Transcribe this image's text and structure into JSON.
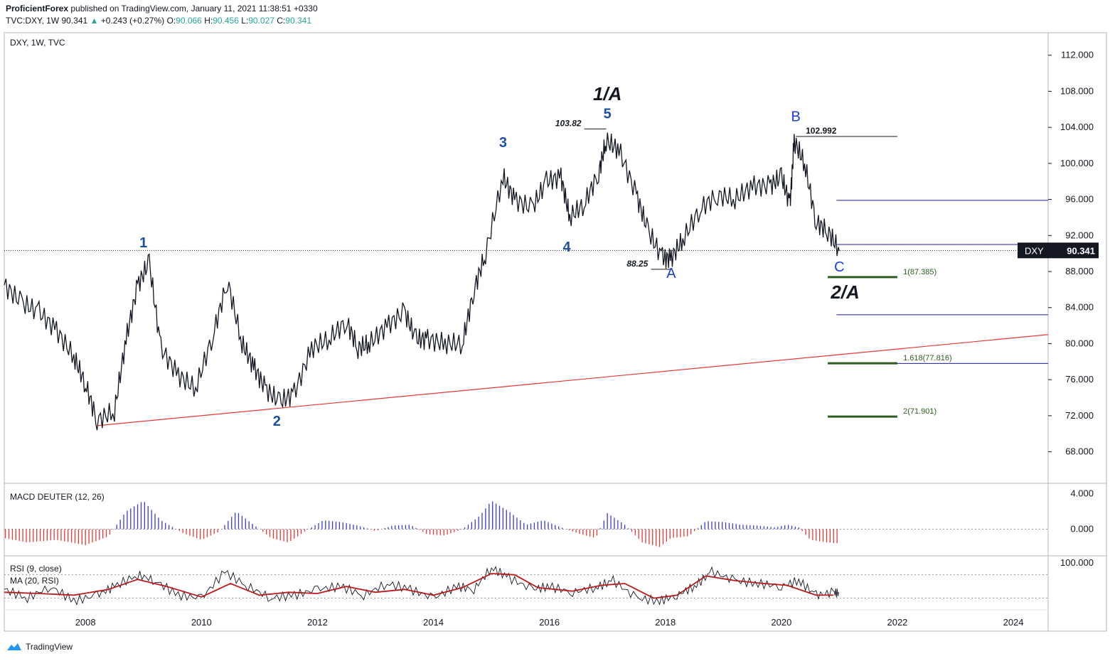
{
  "header": {
    "publisher": "ProficientForex",
    "published_text": " published on TradingView.com, January 11, 2021 11:38:51 +0330",
    "symbol_line_prefix": "TVC:DXY, 1W  90.341 ",
    "change_arrow": "▲",
    "change": "+0.243 (+0.27%)",
    "o_label": " O:",
    "o": "90.066",
    "h_label": " H:",
    "h": "90.456",
    "l_label": " L:",
    "l": "90.027",
    "c_label": " C:",
    "c": "90.341"
  },
  "footer": {
    "brand": "TradingView"
  },
  "colors": {
    "price_line": "#131722",
    "trendline": "#e53935",
    "wave_label": "#1e4fa3",
    "abc_label": "#1a3ce6",
    "fib_line": "#2e5b1e",
    "fib_text": "#2e5b1e",
    "hline": "#1a1a9e",
    "macd_pos": "#3b3bd4",
    "macd_neg": "#e53935",
    "rsi": "#131722",
    "rsi_ma": "#b71c1c"
  },
  "chart_data": [
    {
      "type": "line",
      "pane": "price",
      "title": "DXY, 1W, TVC",
      "ylim": [
        64.5,
        114.5
      ],
      "xlim": [
        2006.6,
        2024.6
      ],
      "y_ticks": [
        "112.000",
        "108.000",
        "104.000",
        "100.000",
        "96.000",
        "92.000",
        "88.000",
        "84.000",
        "80.000",
        "76.000",
        "72.000",
        "68.000"
      ],
      "x_ticks": [
        "2008",
        "2010",
        "2012",
        "2014",
        "2016",
        "2018",
        "2020",
        "2022",
        "2024"
      ],
      "last_price": 90.341,
      "last_price_label": "DXY",
      "last_price_text": "90.341",
      "series": [
        {
          "x": [
            2006.6,
            2006.9,
            2007.2,
            2007.5,
            2007.8,
            2008.0,
            2008.2,
            2008.5,
            2008.7,
            2008.9,
            2009.1,
            2009.3,
            2009.6,
            2009.9,
            2010.2,
            2010.45,
            2010.7,
            2010.9,
            2011.1,
            2011.35,
            2011.6,
            2011.9,
            2012.2,
            2012.5,
            2012.7,
            2012.9,
            2013.2,
            2013.5,
            2013.7,
            2013.9,
            2014.2,
            2014.5,
            2014.7,
            2014.9,
            2015.2,
            2015.4,
            2015.7,
            2015.95,
            2016.2,
            2016.35,
            2016.6,
            2016.85,
            2016.98,
            2017.2,
            2017.5,
            2017.7,
            2017.95,
            2018.1,
            2018.3,
            2018.6,
            2018.9,
            2019.2,
            2019.5,
            2019.8,
            2020.0,
            2020.15,
            2020.22,
            2020.4,
            2020.6,
            2020.8,
            2021.0
          ],
          "y": [
            86.5,
            84.5,
            83.5,
            81.5,
            78.5,
            75.5,
            71.5,
            72.5,
            80.5,
            86.5,
            89.0,
            79.5,
            76.5,
            75.0,
            81.0,
            87.0,
            80.0,
            77.5,
            75.0,
            73.5,
            74.5,
            79.5,
            80.5,
            82.5,
            79.5,
            80.0,
            82.0,
            83.5,
            80.5,
            80.5,
            80.0,
            80.0,
            86.0,
            90.0,
            98.5,
            96.0,
            95.0,
            98.0,
            98.5,
            94.0,
            95.5,
            99.0,
            102.5,
            101.5,
            96.5,
            92.5,
            89.5,
            89.5,
            91.5,
            95.0,
            96.5,
            96.0,
            97.5,
            97.5,
            98.5,
            95.5,
            102.5,
            100.0,
            93.5,
            92.5,
            90.3
          ]
        }
      ],
      "annotations": {
        "wave_labels": [
          {
            "text": "1",
            "x": 2009.0,
            "y": 90.7
          },
          {
            "text": "2",
            "x": 2011.3,
            "y": 70.9
          },
          {
            "text": "3",
            "x": 2015.2,
            "y": 101.8
          },
          {
            "text": "4",
            "x": 2016.3,
            "y": 90.2
          },
          {
            "text": "5",
            "x": 2017.0,
            "y": 105.0
          }
        ],
        "abc_labels": [
          {
            "text": "A",
            "x": 2018.1,
            "y": 87.3
          },
          {
            "text": "B",
            "x": 2020.25,
            "y": 104.7
          },
          {
            "text": "C",
            "x": 2021.0,
            "y": 88.0
          }
        ],
        "degree_labels": [
          {
            "text": "1/A",
            "x": 2017.0,
            "y": 107.0
          },
          {
            "text": "2/A",
            "x": 2021.1,
            "y": 85.0
          }
        ],
        "price_marks": [
          {
            "text": "103.82",
            "x1": 2016.6,
            "x2": 2016.98,
            "y": 103.82
          },
          {
            "text": "88.25",
            "x1": 2017.75,
            "x2": 2018.1,
            "y": 88.25
          },
          {
            "text": "102.992",
            "x1": 2020.25,
            "x2": 2022.0,
            "y": 102.99
          }
        ],
        "fib_levels": [
          {
            "text": "1(87.385)",
            "y": 87.385
          },
          {
            "text": "1.618(77.816)",
            "y": 77.816
          },
          {
            "text": "2(71.901)",
            "y": 71.901
          }
        ],
        "hlines": [
          95.9,
          91.0,
          83.2,
          77.8
        ],
        "trendline": {
          "x1": 2008.2,
          "y1": 70.9,
          "x2": 2024.6,
          "y2": 81.0
        }
      }
    },
    {
      "type": "bar",
      "pane": "macd",
      "title": "MACD DEUTER (12, 26)",
      "ylim": [
        -3.0,
        5.0
      ],
      "y_ticks": [
        "4.000",
        "0.000"
      ],
      "series": [
        {
          "x": [
            2006.6,
            2007.0,
            2007.5,
            2008.0,
            2008.4,
            2008.7,
            2009.0,
            2009.3,
            2009.7,
            2010.0,
            2010.3,
            2010.6,
            2010.9,
            2011.2,
            2011.5,
            2011.8,
            2012.1,
            2012.4,
            2012.7,
            2013.0,
            2013.3,
            2013.6,
            2013.9,
            2014.2,
            2014.5,
            2014.8,
            2015.0,
            2015.3,
            2015.6,
            2015.9,
            2016.2,
            2016.5,
            2016.8,
            2017.0,
            2017.3,
            2017.6,
            2017.9,
            2018.1,
            2018.4,
            2018.7,
            2019.0,
            2019.3,
            2019.6,
            2019.9,
            2020.1,
            2020.3,
            2020.5,
            2020.8,
            2021.0
          ],
          "y": [
            -1.0,
            -1.5,
            -1.2,
            -1.8,
            -0.8,
            2.0,
            3.2,
            1.0,
            -0.5,
            -1.2,
            -0.3,
            2.0,
            0.5,
            -1.0,
            -1.5,
            -0.2,
            1.0,
            0.8,
            0.4,
            -0.2,
            0.4,
            0.5,
            -0.6,
            -0.7,
            0.0,
            1.5,
            3.2,
            2.0,
            0.5,
            1.0,
            0.2,
            -0.5,
            -1.0,
            1.8,
            0.5,
            -1.5,
            -2.0,
            -1.0,
            -0.8,
            0.9,
            0.8,
            0.5,
            0.4,
            0.2,
            0.5,
            0.2,
            -1.2,
            -1.5,
            -1.6
          ]
        }
      ]
    },
    {
      "type": "line",
      "pane": "rsi",
      "title": "RSI (9, close)",
      "subtitle": "MA (20, RSI)",
      "ylim": [
        20,
        110
      ],
      "y_ticks": [
        "100.000"
      ],
      "series": [
        {
          "x": [
            2006.6,
            2007.0,
            2007.4,
            2007.8,
            2008.2,
            2008.5,
            2008.9,
            2009.2,
            2009.6,
            2010.0,
            2010.4,
            2010.8,
            2011.2,
            2011.6,
            2012.0,
            2012.4,
            2012.8,
            2013.2,
            2013.6,
            2014.0,
            2014.4,
            2014.7,
            2015.0,
            2015.3,
            2015.7,
            2016.0,
            2016.4,
            2016.8,
            2017.1,
            2017.5,
            2017.9,
            2018.2,
            2018.5,
            2018.8,
            2019.2,
            2019.6,
            2020.0,
            2020.3,
            2020.6,
            2020.9,
            2021.0
          ],
          "y": [
            55,
            40,
            60,
            35,
            45,
            60,
            80,
            70,
            45,
            40,
            85,
            60,
            40,
            45,
            55,
            60,
            45,
            65,
            55,
            40,
            60,
            55,
            92,
            75,
            55,
            60,
            50,
            58,
            70,
            40,
            35,
            45,
            60,
            85,
            70,
            65,
            60,
            70,
            45,
            50,
            48
          ]
        },
        {
          "x": [
            2006.6,
            2007.2,
            2007.8,
            2008.4,
            2008.9,
            2009.4,
            2010.0,
            2010.5,
            2011.0,
            2011.5,
            2012.0,
            2012.5,
            2013.0,
            2013.5,
            2014.0,
            2014.5,
            2015.0,
            2015.4,
            2015.8,
            2016.4,
            2016.9,
            2017.3,
            2017.8,
            2018.2,
            2018.7,
            2019.2,
            2019.7,
            2020.1,
            2020.6,
            2021.0
          ],
          "y": [
            50,
            48,
            45,
            55,
            72,
            60,
            42,
            65,
            45,
            50,
            48,
            60,
            50,
            55,
            45,
            58,
            82,
            80,
            58,
            52,
            62,
            65,
            40,
            45,
            78,
            70,
            65,
            62,
            45,
            45
          ]
        }
      ]
    }
  ]
}
